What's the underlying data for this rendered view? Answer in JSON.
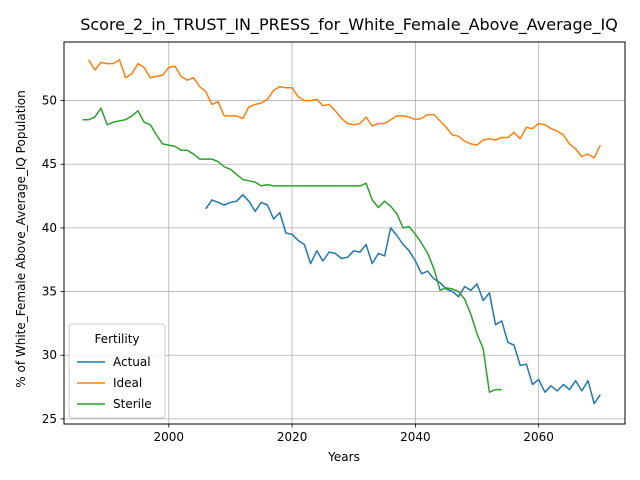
{
  "chart_data": {
    "type": "line",
    "title": "Score_2_in_TRUST_IN_PRESS_for_White_Female_Above_Average_IQ",
    "xlabel": "Years",
    "ylabel": "% of White_Female Above_Average_IQ Population",
    "xlim": [
      1983,
      2074
    ],
    "ylim": [
      24.6,
      54.6
    ],
    "xticks": [
      2000,
      2020,
      2040,
      2060
    ],
    "yticks": [
      25,
      30,
      35,
      40,
      45,
      50
    ],
    "grid": true,
    "legend": {
      "title": "Fertility",
      "position": "lower-left"
    },
    "series": [
      {
        "name": "Actual",
        "color": "#1f77b4",
        "x": [
          2006,
          2007,
          2008,
          2009,
          2010,
          2011,
          2012,
          2013,
          2014,
          2015,
          2016,
          2017,
          2018,
          2019,
          2020,
          2021,
          2022,
          2023,
          2024,
          2025,
          2026,
          2027,
          2028,
          2029,
          2030,
          2031,
          2032,
          2033,
          2034,
          2035,
          2036,
          2037,
          2038,
          2039,
          2040,
          2041,
          2042,
          2043,
          2044,
          2045,
          2046,
          2047,
          2048,
          2049,
          2050,
          2051,
          2052,
          2053,
          2054,
          2055,
          2056,
          2057,
          2058,
          2059,
          2060,
          2061,
          2062,
          2063,
          2064,
          2065,
          2066,
          2067,
          2068,
          2069,
          2070
        ],
        "y": [
          41.5,
          42.2,
          42.0,
          41.8,
          42.0,
          42.1,
          42.6,
          42.1,
          41.3,
          42.0,
          41.8,
          40.7,
          41.2,
          39.6,
          39.5,
          39.0,
          38.7,
          37.2,
          38.2,
          37.4,
          38.1,
          38.0,
          37.6,
          37.7,
          38.2,
          38.1,
          38.7,
          37.2,
          38.0,
          37.8,
          40.0,
          39.4,
          38.7,
          38.2,
          37.4,
          36.4,
          36.6,
          36.0,
          35.7,
          35.2,
          35.0,
          34.6,
          35.4,
          35.1,
          35.6,
          34.3,
          34.9,
          32.4,
          32.7,
          31.0,
          30.8,
          29.2,
          29.3,
          27.7,
          28.1,
          27.1,
          27.6,
          27.2,
          27.7,
          27.3,
          28.0,
          27.2,
          28.0,
          26.2,
          26.9
        ]
      },
      {
        "name": "Ideal",
        "color": "#ff7f0e",
        "x": [
          1987,
          1988,
          1989,
          1990,
          1991,
          1992,
          1993,
          1994,
          1995,
          1996,
          1997,
          1998,
          1999,
          2000,
          2001,
          2002,
          2003,
          2004,
          2005,
          2006,
          2007,
          2008,
          2009,
          2010,
          2011,
          2012,
          2013,
          2014,
          2015,
          2016,
          2017,
          2018,
          2019,
          2020,
          2021,
          2022,
          2023,
          2024,
          2025,
          2026,
          2027,
          2028,
          2029,
          2030,
          2031,
          2032,
          2033,
          2034,
          2035,
          2036,
          2037,
          2038,
          2039,
          2040,
          2041,
          2042,
          2043,
          2044,
          2045,
          2046,
          2047,
          2048,
          2049,
          2050,
          2051,
          2052,
          2053,
          2054,
          2055,
          2056,
          2057,
          2058,
          2059,
          2060,
          2061,
          2062,
          2063,
          2064,
          2065,
          2066,
          2067,
          2068,
          2069,
          2070
        ],
        "y": [
          53.2,
          52.4,
          53.0,
          52.9,
          52.9,
          53.2,
          51.8,
          52.1,
          52.9,
          52.6,
          51.8,
          51.9,
          52.0,
          52.6,
          52.7,
          51.9,
          51.6,
          51.8,
          51.1,
          50.7,
          49.7,
          49.9,
          48.8,
          48.8,
          48.8,
          48.6,
          49.5,
          49.7,
          49.8,
          50.1,
          50.8,
          51.1,
          51.0,
          51.0,
          50.3,
          50.0,
          50.0,
          50.1,
          49.6,
          49.7,
          49.2,
          48.6,
          48.2,
          48.1,
          48.2,
          48.7,
          48.0,
          48.2,
          48.2,
          48.5,
          48.8,
          48.8,
          48.7,
          48.5,
          48.6,
          48.9,
          48.9,
          48.4,
          47.9,
          47.3,
          47.2,
          46.8,
          46.6,
          46.5,
          46.9,
          47.0,
          46.9,
          47.1,
          47.1,
          47.5,
          47.0,
          47.9,
          47.8,
          48.2,
          48.1,
          47.8,
          47.6,
          47.3,
          46.6,
          46.2,
          45.6,
          45.8,
          45.5,
          46.5
        ]
      },
      {
        "name": "Sterile",
        "color": "#2ca02c",
        "x": [
          1986,
          1987,
          1988,
          1989,
          1990,
          1991,
          1992,
          1993,
          1994,
          1995,
          1996,
          1997,
          1998,
          1999,
          2000,
          2001,
          2002,
          2003,
          2004,
          2005,
          2006,
          2007,
          2008,
          2009,
          2010,
          2011,
          2012,
          2013,
          2014,
          2015,
          2016,
          2017,
          2018,
          2019,
          2020,
          2021,
          2022,
          2023,
          2024,
          2025,
          2026,
          2027,
          2028,
          2029,
          2030,
          2031,
          2032,
          2033,
          2034,
          2035,
          2036,
          2037,
          2038,
          2039,
          2040,
          2041,
          2042,
          2043,
          2044,
          2045,
          2046,
          2047,
          2048,
          2049,
          2050,
          2051,
          2052,
          2053,
          2054
        ],
        "y": [
          48.5,
          48.5,
          48.7,
          49.4,
          48.1,
          48.3,
          48.4,
          48.5,
          48.8,
          49.2,
          48.3,
          48.1,
          47.3,
          46.6,
          46.5,
          46.4,
          46.1,
          46.1,
          45.8,
          45.4,
          45.4,
          45.4,
          45.2,
          44.8,
          44.6,
          44.2,
          43.8,
          43.7,
          43.6,
          43.3,
          43.4,
          43.3,
          43.3,
          43.3,
          43.3,
          43.3,
          43.3,
          43.3,
          43.3,
          43.3,
          43.3,
          43.3,
          43.3,
          43.3,
          43.3,
          43.3,
          43.5,
          42.2,
          41.6,
          42.1,
          41.7,
          41.1,
          40.0,
          40.1,
          39.5,
          38.8,
          38.0,
          36.8,
          35.1,
          35.3,
          35.2,
          35.0,
          34.4,
          33.2,
          31.7,
          30.5,
          27.1,
          27.3,
          27.3
        ]
      }
    ]
  }
}
